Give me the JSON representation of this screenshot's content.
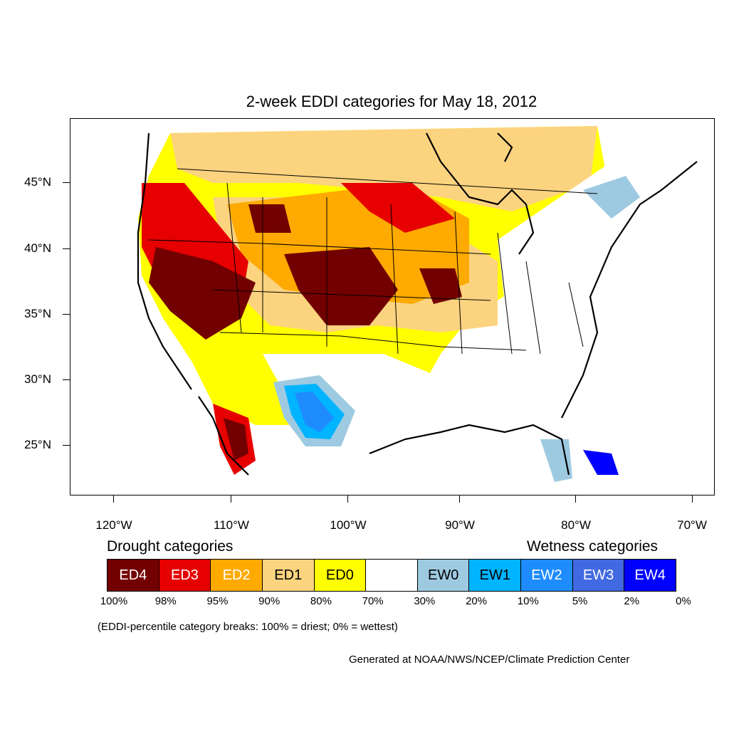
{
  "title": "2-week EDDI categories for May 18, 2012",
  "lat_labels": [
    "45°N",
    "40°N",
    "35°N",
    "30°N",
    "25°N"
  ],
  "lon_labels": [
    "120°W",
    "110°W",
    "100°W",
    "90°W",
    "80°W",
    "70°W"
  ],
  "legend": {
    "drought_heading": "Drought categories",
    "wetness_heading": "Wetness categories",
    "categories": [
      {
        "label": "ED4",
        "color": "#730000",
        "text_color": "#ffffff"
      },
      {
        "label": "ED3",
        "color": "#e60000",
        "text_color": "#ffffff"
      },
      {
        "label": "ED2",
        "color": "#ffaa00",
        "text_color": "#ffffff"
      },
      {
        "label": "ED1",
        "color": "#fcd37f",
        "text_color": "#000000"
      },
      {
        "label": "ED0",
        "color": "#ffff00",
        "text_color": "#000000"
      },
      {
        "label": "",
        "color": "#ffffff",
        "text_color": "#000000"
      },
      {
        "label": "EW0",
        "color": "#9ecae1",
        "text_color": "#000000"
      },
      {
        "label": "EW1",
        "color": "#00b4ff",
        "text_color": "#000000"
      },
      {
        "label": "EW2",
        "color": "#1e8cff",
        "text_color": "#ffffff"
      },
      {
        "label": "EW3",
        "color": "#4169e1",
        "text_color": "#ffffff"
      },
      {
        "label": "EW4",
        "color": "#0000ff",
        "text_color": "#ffffff"
      }
    ],
    "breaks": [
      "100%",
      "98%",
      "95%",
      "90%",
      "80%",
      "70%",
      "30%",
      "20%",
      "10%",
      "5%",
      "2%",
      "0%"
    ]
  },
  "note": "(EDDI-percentile category breaks: 100% = driest; 0% = wettest)",
  "credit": "Generated at NOAA/NWS/NCEP/Climate Prediction Center"
}
